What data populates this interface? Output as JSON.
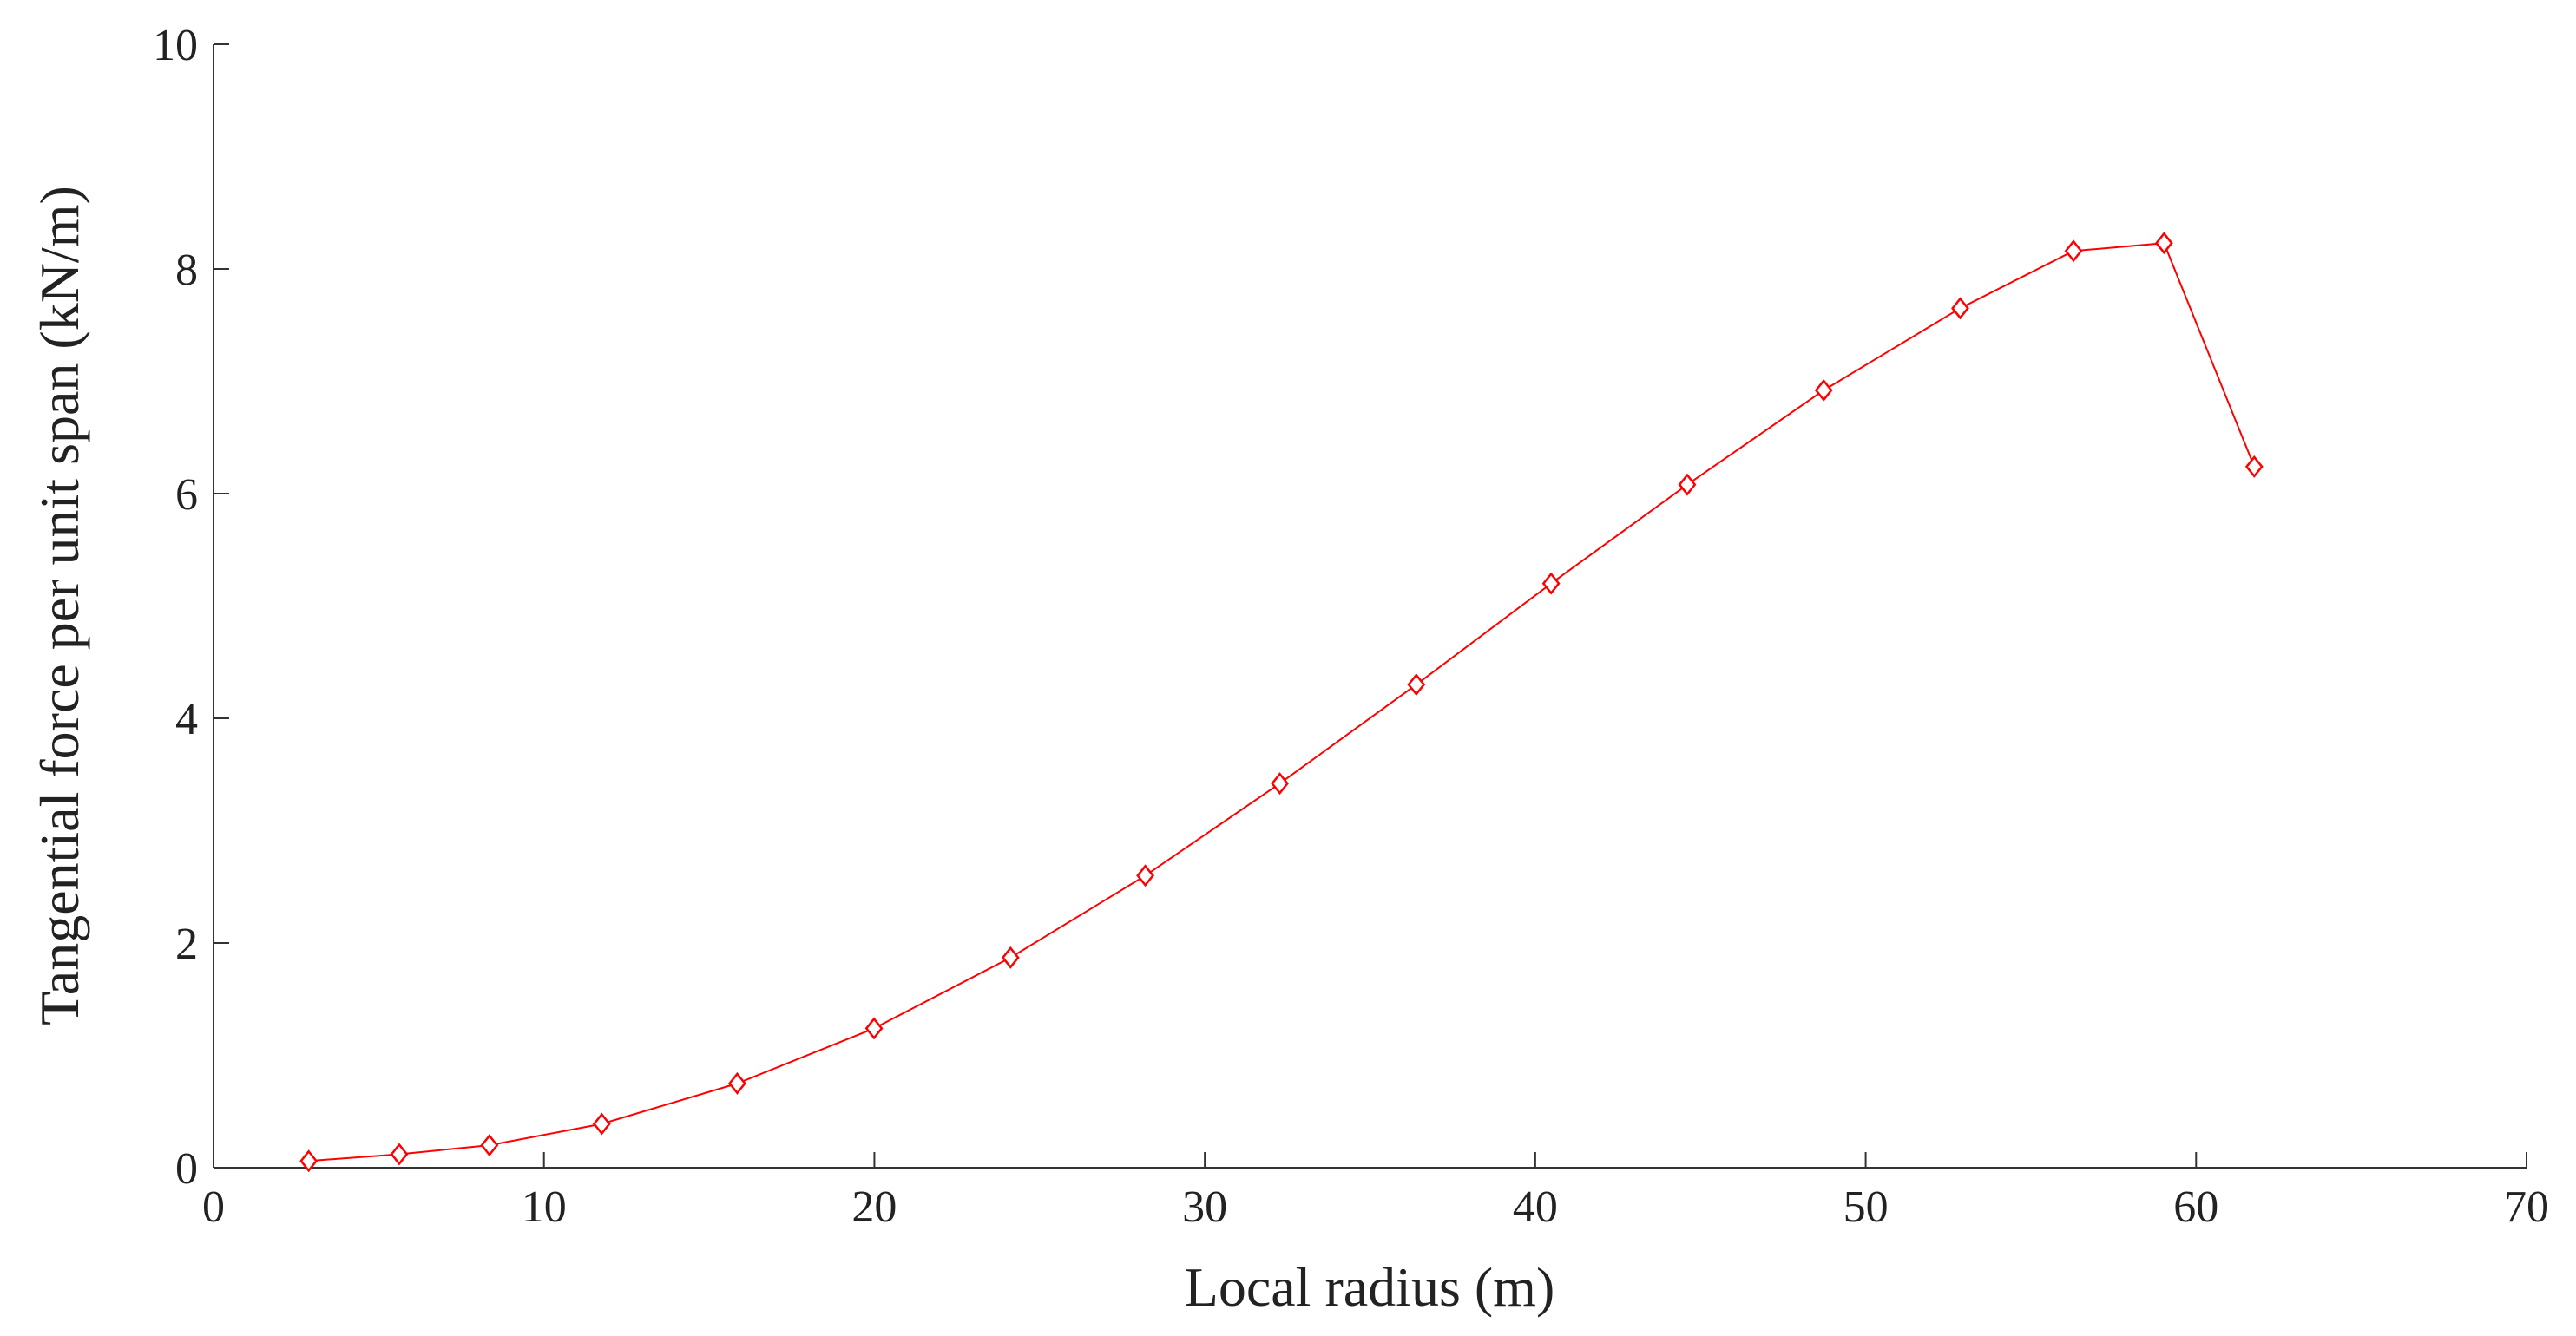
{
  "chart_data": {
    "type": "line",
    "x_label": "Local radius (m)",
    "y_label": "Tangential force per unit span (kN/m)",
    "series": [
      {
        "color": "#ff0000",
        "marker": "diamond",
        "x": [
          2.88,
          5.62,
          8.35,
          11.75,
          15.85,
          19.99,
          24.12,
          28.2,
          32.27,
          36.4,
          40.48,
          44.6,
          48.73,
          52.86,
          56.29,
          59.03,
          61.76
        ],
        "values": [
          0.06,
          0.12,
          0.2,
          0.39,
          0.75,
          1.24,
          1.87,
          2.6,
          3.42,
          4.3,
          5.2,
          6.08,
          6.92,
          7.65,
          8.16,
          8.23,
          6.24
        ]
      }
    ],
    "xlim": [
      0,
      70
    ],
    "xticks": [
      0,
      10,
      20,
      30,
      40,
      50,
      60,
      70
    ],
    "ylim": [
      0,
      10
    ],
    "yticks": [
      0,
      2,
      4,
      6,
      8,
      10
    ],
    "grid": false
  }
}
